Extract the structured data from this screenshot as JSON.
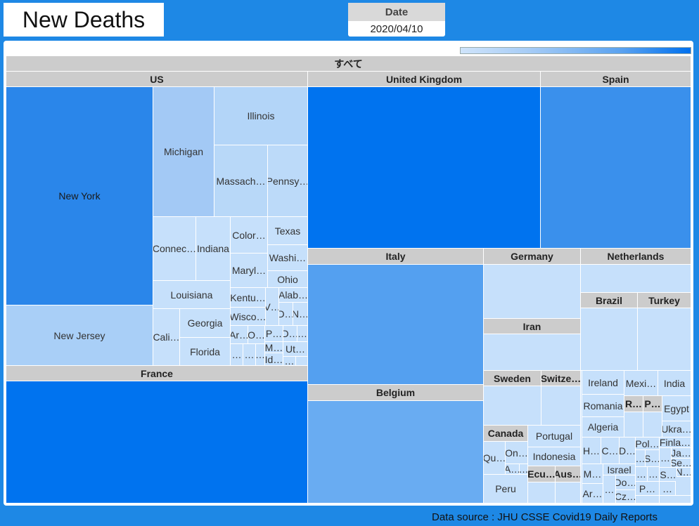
{
  "header": {
    "title": "New Deaths"
  },
  "date_filter": {
    "label": "Date",
    "value": "2020/04/10"
  },
  "footer": {
    "source": "Data source : JHU CSSE Covid19 Daily Reports"
  },
  "colors": {
    "background": "#1e88e5",
    "header": "#cccccc",
    "light": "#c6e0fb",
    "dark": "#0073ef"
  },
  "treemap": {
    "labels": {
      "root": "すべて",
      "us": "US",
      "uk": "United Kingdom",
      "spain": "Spain",
      "ny": "New York",
      "nj": "New Jersey",
      "mi": "Michigan",
      "il": "Illinois",
      "ma": "Massach…",
      "pa": "Pennsy…",
      "ct": "Connec…",
      "in": "Indiana",
      "co": "Color…",
      "tx": "Texas",
      "wa": "Washi…",
      "md": "Maryl…",
      "oh": "Ohio",
      "la": "Louisiana",
      "ca": "Cali…",
      "ga": "Georgia",
      "fl": "Florida",
      "ky": "Kentu…",
      "wi": "Wisco…",
      "va": "V…",
      "al": "Alab…",
      "dc": "D…",
      "nv": "N…",
      "ar": "Ar…",
      "ok": "O…",
      "pr": "P…",
      "de": "D…",
      "e1": "…",
      "e2": "…",
      "e3": "…",
      "e4": "…",
      "ms": "M…",
      "id": "Id…",
      "ut": "Ut…",
      "e5": "…",
      "france": "France",
      "italy": "Italy",
      "belgium": "Belgium",
      "germany": "Germany",
      "iran": "Iran",
      "netherlands": "Netherlands",
      "brazil": "Brazil",
      "turkey": "Turkey",
      "sweden": "Sweden",
      "switz": "Switze…",
      "canada": "Canada",
      "qu": "Qu…",
      "on": "On…",
      "ab": "A…",
      "e6": "…",
      "peru": "Peru",
      "portugal": "Portugal",
      "indonesia": "Indonesia",
      "ecu": "Ecu…",
      "aus": "Aus…",
      "ireland": "Ireland",
      "mexico": "Mexi…",
      "india": "India",
      "romania": "Romania",
      "rh": "R…",
      "ph": "P…",
      "egypt": "Egypt",
      "algeria": "Algeria",
      "ukraine": "Ukra…",
      "hu": "H…",
      "ch": "C…",
      "dk": "D…",
      "pol": "Pol…",
      "fin": "Finla…",
      "ja": "Ja…",
      "se": "Se…",
      "mo": "M…",
      "israel": "Israel",
      "arg": "Ar…",
      "e7": "…",
      "do": "Do…",
      "cz": "Cz…",
      "e8": "…",
      "s1": "S…",
      "e9": "…",
      "s2": "S…",
      "nn": "N…",
      "e10": "…",
      "e11": "…",
      "pp": "P…",
      "e12": "…"
    }
  }
}
